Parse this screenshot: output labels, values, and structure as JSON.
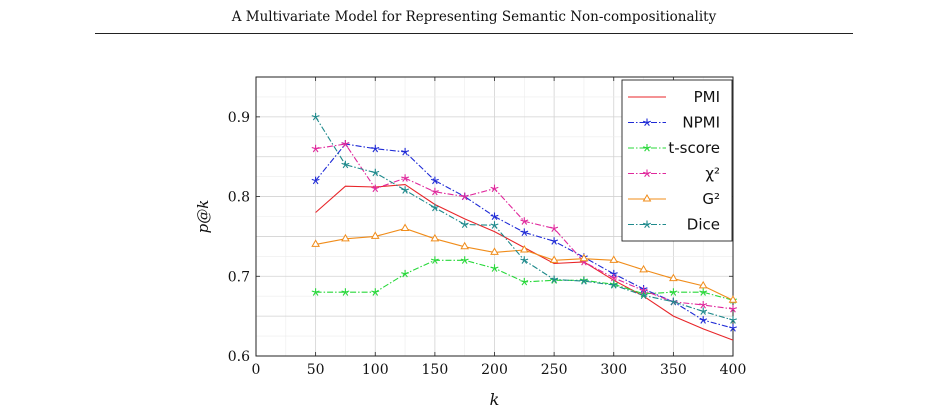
{
  "header": {
    "title": "A Multivariate Model for Representing Semantic Non-compositionality"
  },
  "chart_data": {
    "type": "line",
    "title": "",
    "xlabel": "k",
    "ylabel": "p@k",
    "xlim": [
      0,
      400
    ],
    "ylim": [
      0.6,
      0.95
    ],
    "xticks": [
      0,
      50,
      100,
      150,
      200,
      250,
      300,
      350,
      400
    ],
    "yticks": [
      0.6,
      0.7,
      0.8,
      0.9
    ],
    "grid": true,
    "legend_position": "top-right",
    "x": [
      50,
      75,
      100,
      125,
      150,
      175,
      200,
      225,
      250,
      275,
      300,
      325,
      350,
      375,
      400
    ],
    "series": [
      {
        "name": "PMI",
        "color": "#e8262a",
        "marker": "none",
        "dash": "solid",
        "values": [
          0.78,
          0.813,
          0.812,
          0.815,
          0.79,
          0.772,
          0.756,
          0.736,
          0.716,
          0.718,
          0.695,
          0.675,
          0.65,
          0.634,
          0.62
        ]
      },
      {
        "name": "NPMI",
        "color": "#1f2bd6",
        "marker": "star",
        "dash": "dashdot",
        "values": [
          0.82,
          0.866,
          0.86,
          0.856,
          0.82,
          0.8,
          0.775,
          0.755,
          0.744,
          0.724,
          0.703,
          0.684,
          0.668,
          0.645,
          0.635
        ]
      },
      {
        "name": "t-score",
        "color": "#28d83a",
        "marker": "star",
        "dash": "dashdot",
        "values": [
          0.68,
          0.68,
          0.68,
          0.703,
          0.72,
          0.72,
          0.71,
          0.693,
          0.695,
          0.695,
          0.69,
          0.678,
          0.68,
          0.68,
          0.67
        ]
      },
      {
        "name": "χ²",
        "color": "#e0289c",
        "marker": "star",
        "dash": "dashdot",
        "values": [
          0.86,
          0.866,
          0.81,
          0.823,
          0.806,
          0.8,
          0.81,
          0.769,
          0.76,
          0.718,
          0.698,
          0.682,
          0.668,
          0.664,
          0.659
        ]
      },
      {
        "name": "G²",
        "color": "#f08c1a",
        "marker": "triangle",
        "dash": "solid",
        "values": [
          0.74,
          0.747,
          0.75,
          0.76,
          0.747,
          0.737,
          0.73,
          0.733,
          0.72,
          0.722,
          0.72,
          0.708,
          0.697,
          0.688,
          0.67
        ]
      },
      {
        "name": "Dice",
        "color": "#1f8a8c",
        "marker": "star",
        "dash": "dashdot",
        "values": [
          0.9,
          0.84,
          0.83,
          0.808,
          0.786,
          0.765,
          0.764,
          0.72,
          0.696,
          0.694,
          0.689,
          0.676,
          0.668,
          0.656,
          0.645
        ]
      }
    ]
  }
}
